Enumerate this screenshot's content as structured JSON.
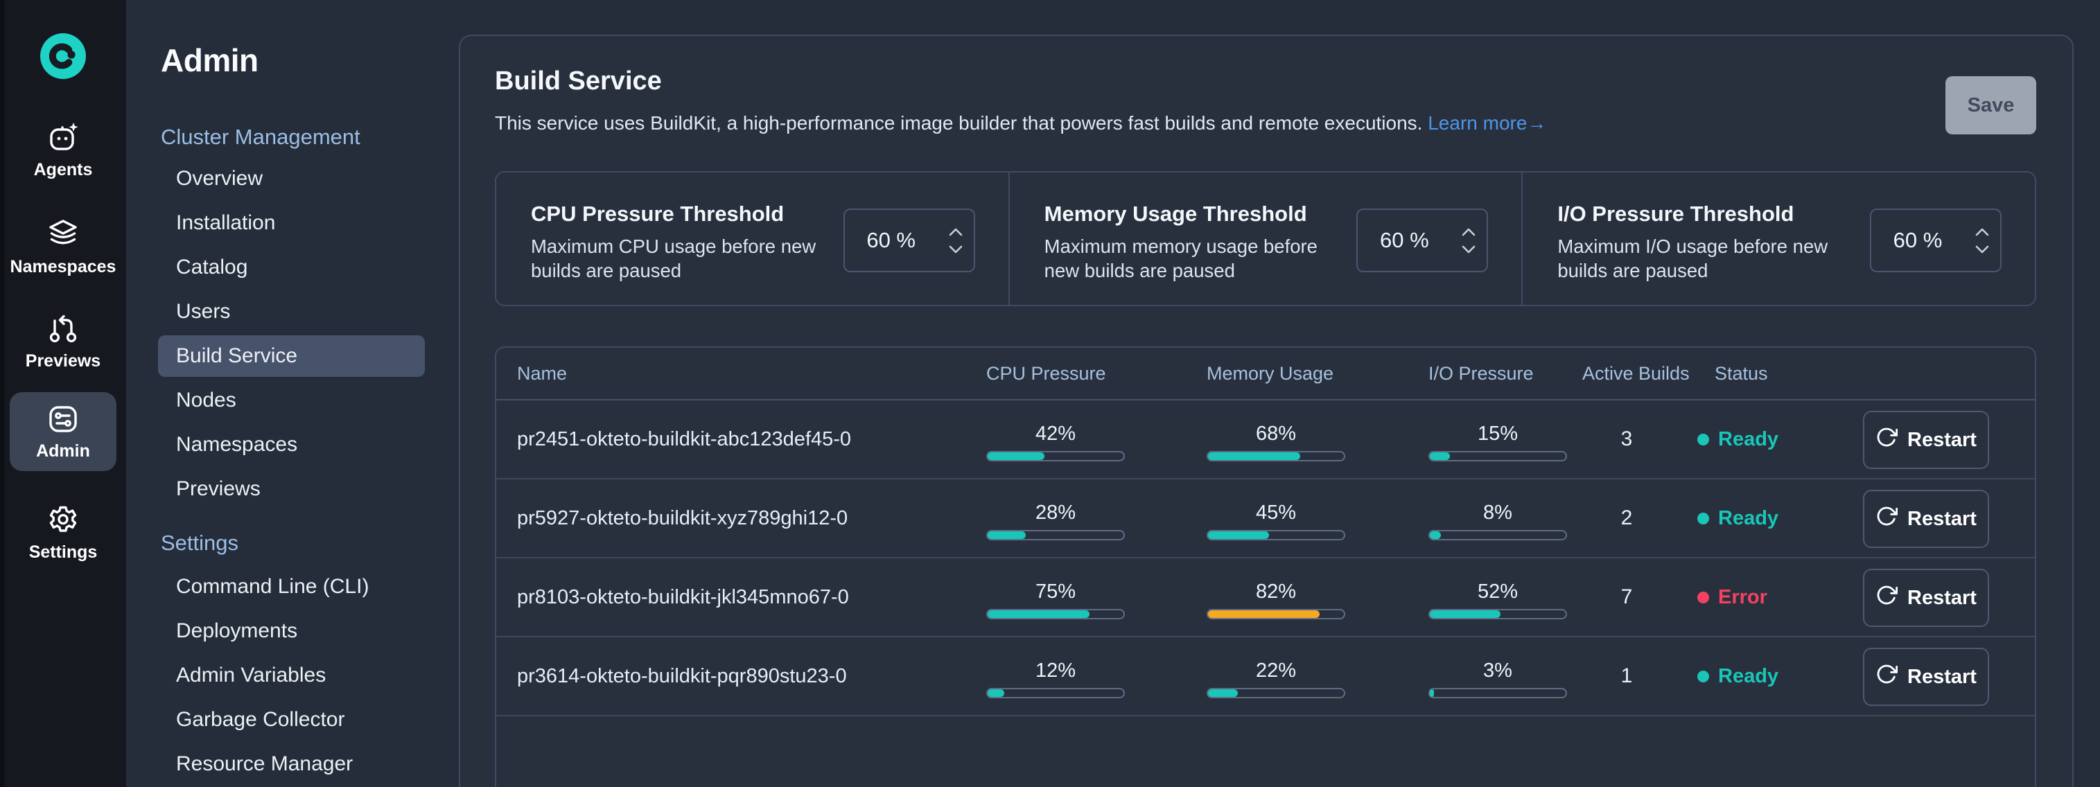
{
  "colors": {
    "teal": "#19C6B7",
    "orange": "#F5A823",
    "red": "#F3425F",
    "link_blue": "#4E96E5",
    "brand": "#1ED3C6"
  },
  "rail": {
    "logo_icon": "okteto-logo",
    "items": [
      {
        "id": "agents",
        "label": "Agents",
        "icon": "robot-sparkle-icon",
        "selected": false
      },
      {
        "id": "namespaces",
        "label": "Namespaces",
        "icon": "layers-icon",
        "selected": false
      },
      {
        "id": "previews",
        "label": "Previews",
        "icon": "pull-request-icon",
        "selected": false
      },
      {
        "id": "admin",
        "label": "Admin",
        "icon": "sliders-box-icon",
        "selected": true
      },
      {
        "id": "settings",
        "label": "Settings",
        "icon": "gear-icon",
        "selected": false
      }
    ]
  },
  "sidebar": {
    "title": "Admin",
    "sections": [
      {
        "header": "Cluster Management",
        "items": [
          "Overview",
          "Installation",
          "Catalog",
          "Users",
          "Build Service",
          "Nodes",
          "Namespaces",
          "Previews"
        ],
        "selected": "Build Service"
      },
      {
        "header": "Settings",
        "items": [
          "Command Line (CLI)",
          "Deployments",
          "Admin Variables",
          "Garbage Collector",
          "Resource Manager"
        ],
        "selected": ""
      }
    ]
  },
  "main": {
    "title": "Build Service",
    "description": "This service uses BuildKit, a high-performance image builder that powers fast builds and remote executions.",
    "learn_more": "Learn more→",
    "save_label": "Save",
    "thresholds": [
      {
        "id": "cpu",
        "title": "CPU Pressure Threshold",
        "description": "Maximum CPU usage before new builds are paused",
        "value": "60 %"
      },
      {
        "id": "memory",
        "title": "Memory Usage Threshold",
        "description": "Maximum memory usage before new builds are paused",
        "value": "60 %"
      },
      {
        "id": "io",
        "title": "I/O Pressure Threshold",
        "description": "Maximum I/O usage before new builds are paused",
        "value": "60 %"
      }
    ],
    "table": {
      "columns": [
        "Name",
        "CPU Pressure",
        "Memory Usage",
        "I/O Pressure",
        "Active Builds",
        "Status"
      ],
      "restart_label": "Restart",
      "rows": [
        {
          "name": "pr2451-okteto-buildkit-abc123def45-0",
          "metrics": [
            {
              "value": 42,
              "color": "teal"
            },
            {
              "value": 68,
              "color": "teal"
            },
            {
              "value": 15,
              "color": "teal"
            }
          ],
          "builds": "3",
          "status": {
            "label": "Ready",
            "color": "teal"
          }
        },
        {
          "name": "pr5927-okteto-buildkit-xyz789ghi12-0",
          "metrics": [
            {
              "value": 28,
              "color": "teal"
            },
            {
              "value": 45,
              "color": "teal"
            },
            {
              "value": 8,
              "color": "teal"
            }
          ],
          "builds": "2",
          "status": {
            "label": "Ready",
            "color": "teal"
          }
        },
        {
          "name": "pr8103-okteto-buildkit-jkl345mno67-0",
          "metrics": [
            {
              "value": 75,
              "color": "teal"
            },
            {
              "value": 82,
              "color": "orange"
            },
            {
              "value": 52,
              "color": "teal"
            }
          ],
          "builds": "7",
          "status": {
            "label": "Error",
            "color": "red"
          }
        },
        {
          "name": "pr3614-okteto-buildkit-pqr890stu23-0",
          "metrics": [
            {
              "value": 12,
              "color": "teal"
            },
            {
              "value": 22,
              "color": "teal"
            },
            {
              "value": 3,
              "color": "teal"
            }
          ],
          "builds": "1",
          "status": {
            "label": "Ready",
            "color": "teal"
          }
        }
      ]
    }
  }
}
